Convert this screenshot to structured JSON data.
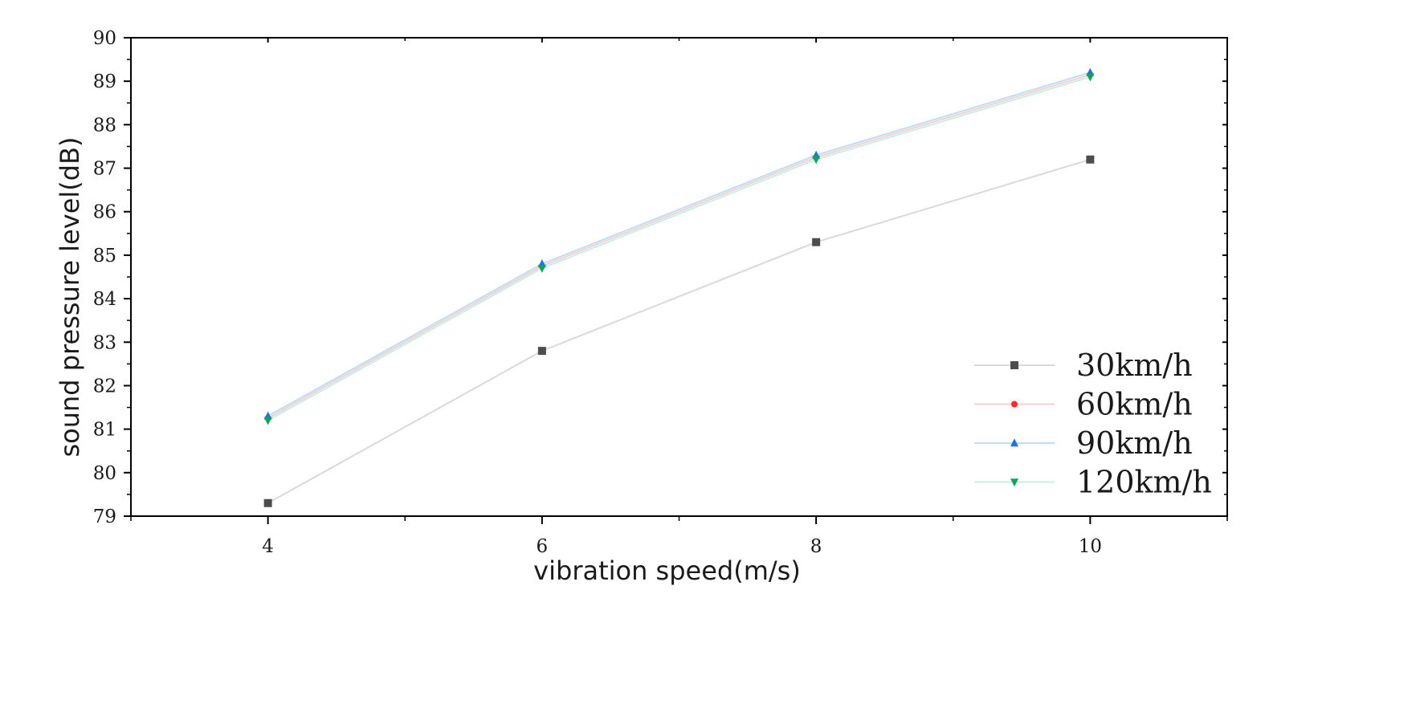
{
  "chart_data": {
    "type": "line",
    "title": "",
    "xlabel": "vibration speed(m/s)",
    "ylabel": "sound pressure level(dB)",
    "x": [
      4,
      6,
      8,
      10
    ],
    "xlim": [
      3,
      11
    ],
    "ylim": [
      79,
      90
    ],
    "xticks": [
      4,
      6,
      8,
      10
    ],
    "yticks": [
      79,
      80,
      81,
      82,
      83,
      84,
      85,
      86,
      87,
      88,
      89,
      90
    ],
    "grid": false,
    "legend_position": "bottom-right",
    "series": [
      {
        "name": "30km/h",
        "values": [
          79.3,
          82.8,
          85.3,
          87.2
        ],
        "marker": "square",
        "color": "#4d4d4d",
        "line_color": "#d9d9d9"
      },
      {
        "name": "60km/h",
        "values": [
          81.25,
          84.75,
          87.25,
          89.15
        ],
        "marker": "circle",
        "color": "#ff2a2a",
        "line_color": "#f6cfcf"
      },
      {
        "name": "90km/h",
        "values": [
          81.3,
          84.8,
          87.3,
          89.2
        ],
        "marker": "triangle-up",
        "color": "#1f6fe6",
        "line_color": "#bfdcf5"
      },
      {
        "name": "120km/h",
        "values": [
          81.2,
          84.7,
          87.2,
          89.1
        ],
        "marker": "triangle-down",
        "color": "#0ea55a",
        "line_color": "#c8eee6"
      }
    ]
  }
}
